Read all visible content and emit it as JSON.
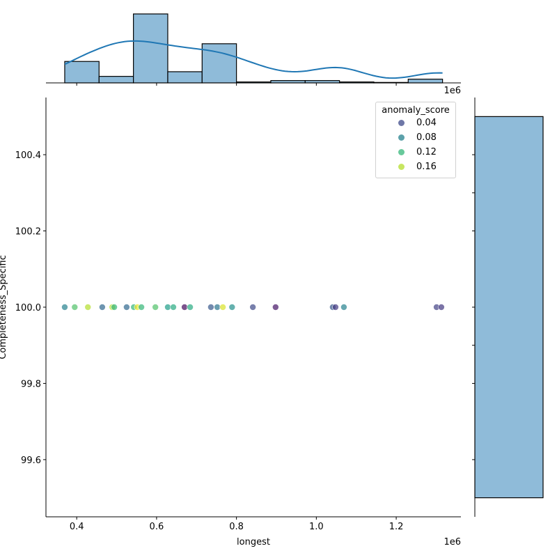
{
  "chart_data": {
    "type": "scatter",
    "xlabel": "longest",
    "ylabel": "Completeness_Specific",
    "x_offset_label": "1e6",
    "xlim": [
      0.323,
      1.362
    ],
    "ylim": [
      99.45,
      100.55
    ],
    "xticks": [
      "0.4",
      "0.6",
      "0.8",
      "1.0",
      "1.2"
    ],
    "xtick_values": [
      0.4,
      0.6,
      0.8,
      1.0,
      1.2
    ],
    "yticks": [
      "99.6",
      "99.8",
      "100.0",
      "100.2",
      "100.4"
    ],
    "ytick_values": [
      99.6,
      99.8,
      100.0,
      100.2,
      100.4
    ],
    "grid": false,
    "legend": {
      "title": "anomaly_score",
      "placement": "top-right",
      "entries": [
        {
          "label": "0.04",
          "value": 0.04
        },
        {
          "label": "0.08",
          "value": 0.08
        },
        {
          "label": "0.12",
          "value": 0.12
        },
        {
          "label": "0.16",
          "value": 0.16
        }
      ]
    },
    "colormap": "viridis",
    "hue_range": [
      0.0,
      0.18
    ],
    "points": [
      {
        "x": 0.37,
        "y": 100.0,
        "score": 0.08
      },
      {
        "x": 0.395,
        "y": 100.0,
        "score": 0.13
      },
      {
        "x": 0.428,
        "y": 100.0,
        "score": 0.16
      },
      {
        "x": 0.464,
        "y": 100.0,
        "score": 0.06
      },
      {
        "x": 0.489,
        "y": 100.0,
        "score": 0.16
      },
      {
        "x": 0.494,
        "y": 100.0,
        "score": 0.12
      },
      {
        "x": 0.525,
        "y": 100.0,
        "score": 0.06
      },
      {
        "x": 0.543,
        "y": 100.0,
        "score": 0.12
      },
      {
        "x": 0.552,
        "y": 100.0,
        "score": 0.175
      },
      {
        "x": 0.562,
        "y": 100.0,
        "score": 0.12
      },
      {
        "x": 0.597,
        "y": 100.0,
        "score": 0.13
      },
      {
        "x": 0.628,
        "y": 100.0,
        "score": 0.1
      },
      {
        "x": 0.642,
        "y": 100.0,
        "score": 0.11
      },
      {
        "x": 0.67,
        "y": 100.0,
        "score": 0.005
      },
      {
        "x": 0.684,
        "y": 100.0,
        "score": 0.11
      },
      {
        "x": 0.736,
        "y": 100.0,
        "score": 0.05
      },
      {
        "x": 0.752,
        "y": 100.0,
        "score": 0.07
      },
      {
        "x": 0.766,
        "y": 100.0,
        "score": 0.17
      },
      {
        "x": 0.789,
        "y": 100.0,
        "score": 0.09
      },
      {
        "x": 0.841,
        "y": 100.0,
        "score": 0.04
      },
      {
        "x": 0.898,
        "y": 100.0,
        "score": 0.01
      },
      {
        "x": 1.041,
        "y": 100.0,
        "score": 0.05
      },
      {
        "x": 1.048,
        "y": 100.0,
        "score": 0.03
      },
      {
        "x": 1.069,
        "y": 100.0,
        "score": 0.08
      },
      {
        "x": 1.301,
        "y": 100.0,
        "score": 0.035
      },
      {
        "x": 1.313,
        "y": 100.0,
        "score": 0.03
      }
    ],
    "marginal_x_histogram": {
      "bin_edges": [
        0.37,
        0.456,
        0.542,
        0.628,
        0.714,
        0.8,
        0.886,
        0.972,
        1.058,
        1.144,
        1.23,
        1.316
      ],
      "counts": [
        23,
        7,
        74,
        12,
        42,
        1,
        2.5,
        2.5,
        1,
        0.5,
        4
      ],
      "kde": true
    },
    "marginal_y_histogram": {
      "bin_edges": [
        99.5,
        100.5
      ],
      "counts": [
        1
      ]
    },
    "colors": {
      "bar": "#8fbbd9",
      "kde": "#1f77b4"
    }
  }
}
